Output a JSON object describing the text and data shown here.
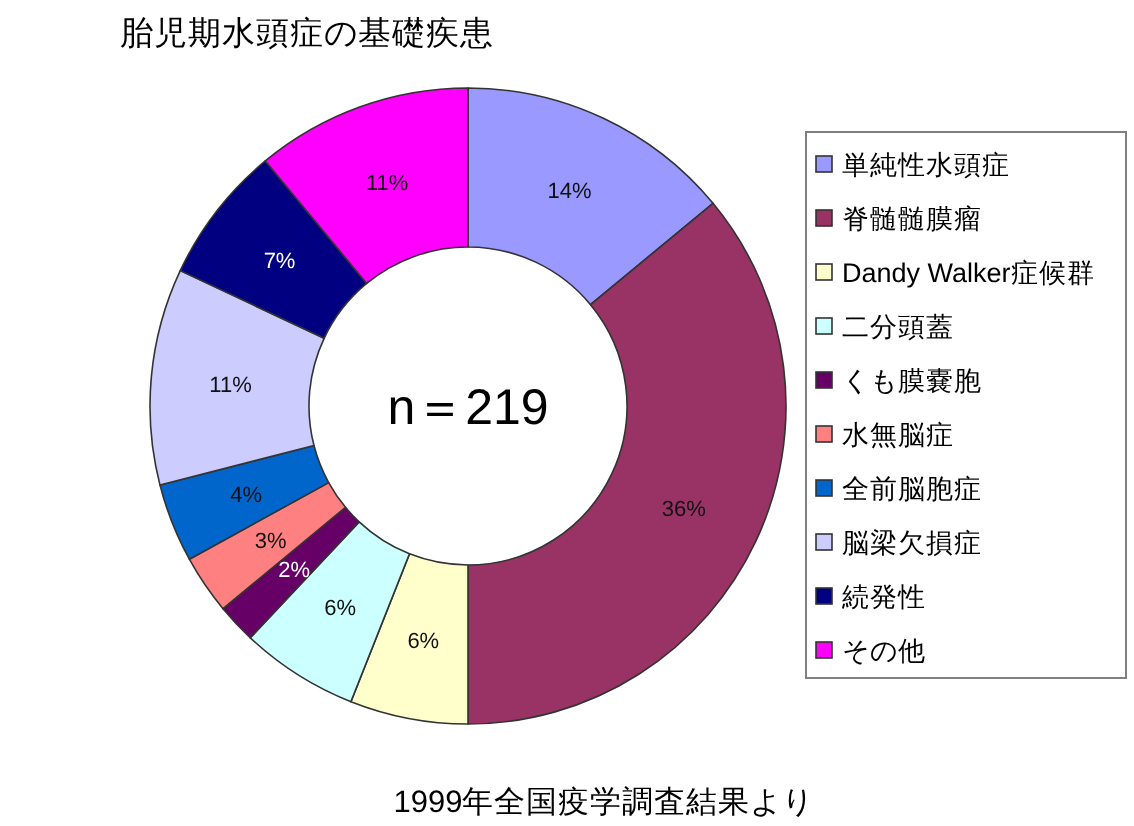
{
  "chart_data": {
    "type": "donut",
    "title": "胎児期水頭症の基礎疾患",
    "categories": [
      "単純性水頭症",
      "脊髄髄膜瘤",
      "Dandy Walker症候群",
      "二分頭蓋",
      "くも膜嚢胞",
      "水無脳症",
      "全前脳胞症",
      "脳梁欠損症",
      "続発性",
      "その他"
    ],
    "values": [
      14,
      36,
      6,
      6,
      2,
      3,
      4,
      11,
      7,
      11
    ],
    "colors": [
      "#9999ff",
      "#993366",
      "#ffffcc",
      "#ccffff",
      "#660066",
      "#ff8080",
      "#0066cc",
      "#ccccff",
      "#000080",
      "#ff00ff"
    ],
    "value_labels": [
      "14%",
      "36%",
      "6%",
      "6%",
      "2%",
      "3%",
      "4%",
      "11%",
      "7%",
      "11%"
    ],
    "legend": "right",
    "annotations": [
      "n＝219",
      "1999年全国疫学調査結果より"
    ]
  }
}
